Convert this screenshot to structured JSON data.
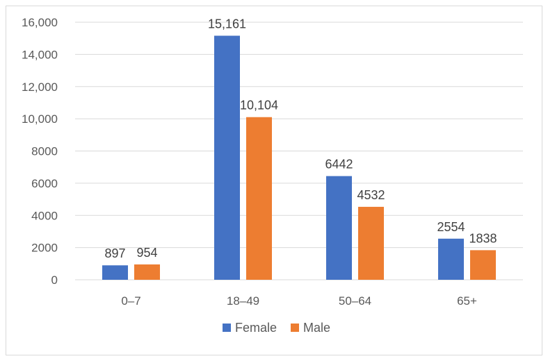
{
  "chart_data": {
    "type": "bar",
    "title": "",
    "xlabel": "",
    "ylabel": "",
    "categories": [
      "0–7",
      "18–49",
      "50–64",
      "65+"
    ],
    "series": [
      {
        "name": "Female",
        "color": "#4472C4",
        "values": [
          897,
          15161,
          6442,
          2554
        ],
        "labels": [
          "897",
          "15,161",
          "6442",
          "2554"
        ]
      },
      {
        "name": "Male",
        "color": "#ED7D31",
        "values": [
          954,
          10104,
          4532,
          1838
        ],
        "labels": [
          "954",
          "10,104",
          "4532",
          "1838"
        ]
      }
    ],
    "ylim": [
      0,
      16000
    ],
    "yticks": [
      {
        "value": 0,
        "label": "0"
      },
      {
        "value": 2000,
        "label": "2000"
      },
      {
        "value": 4000,
        "label": "4000"
      },
      {
        "value": 6000,
        "label": "6000"
      },
      {
        "value": 8000,
        "label": "8000"
      },
      {
        "value": 10000,
        "label": "10,000"
      },
      {
        "value": 12000,
        "label": "12,000"
      },
      {
        "value": 14000,
        "label": "14,000"
      },
      {
        "value": 16000,
        "label": "16,000"
      }
    ],
    "grid": true,
    "legend_position": "bottom"
  }
}
